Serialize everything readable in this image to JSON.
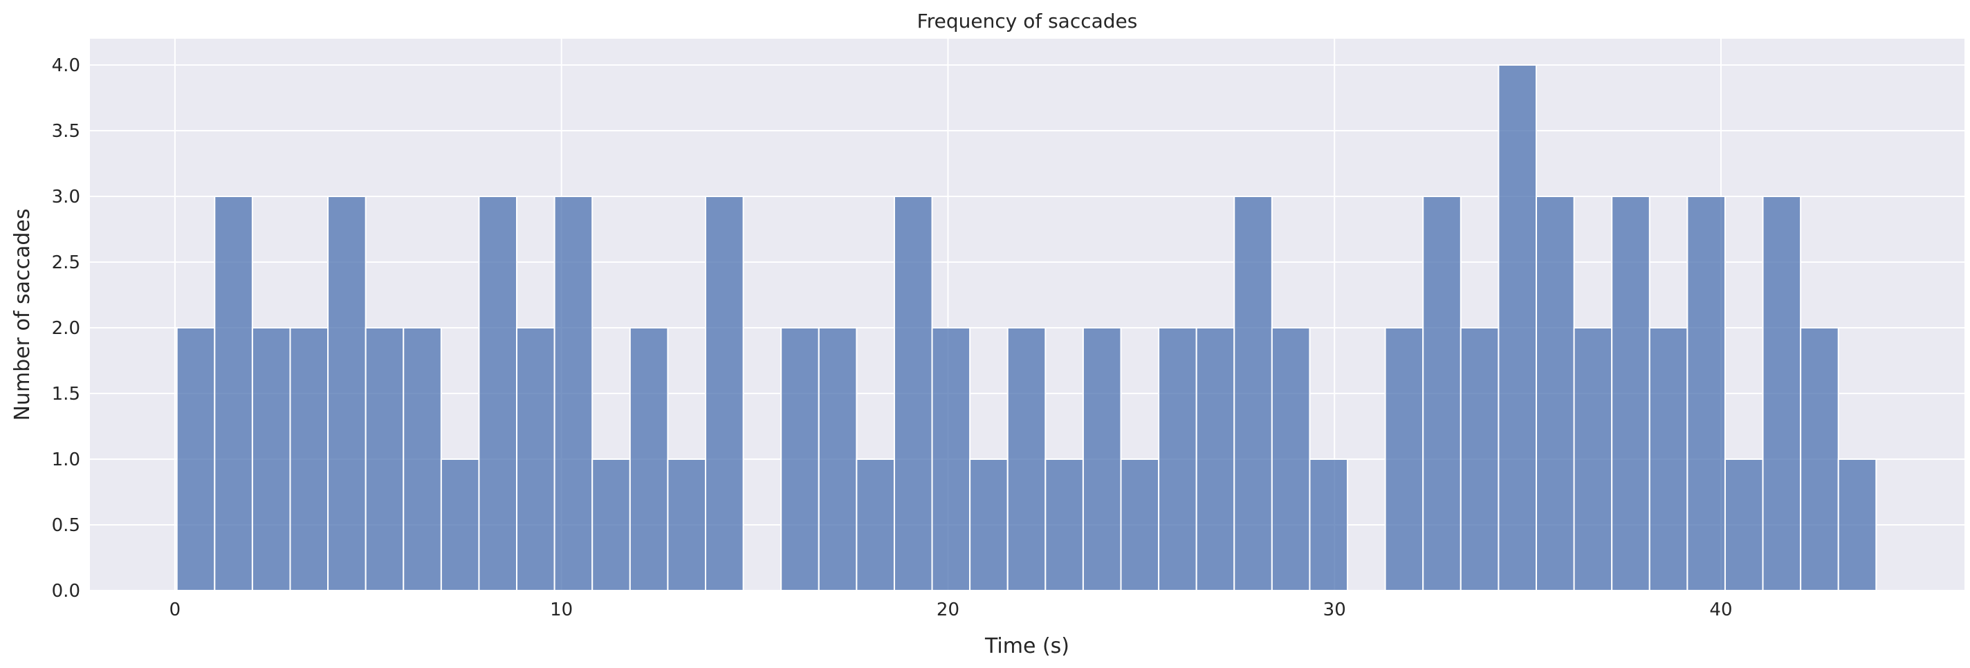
{
  "chart_data": {
    "type": "bar",
    "title": "Frequency of saccades",
    "xlabel": "Time (s)",
    "ylabel": "Number of saccades",
    "xlim": [
      -2.2,
      46.3
    ],
    "ylim": [
      0,
      4.2
    ],
    "xticks": [
      0,
      10,
      20,
      30,
      40
    ],
    "yticks": [
      0.0,
      0.5,
      1.0,
      1.5,
      2.0,
      2.5,
      3.0,
      3.5,
      4.0
    ],
    "bin_start": 0.05,
    "bin_width": 0.977,
    "values": [
      2,
      3,
      2,
      2,
      3,
      2,
      2,
      1,
      3,
      2,
      3,
      1,
      2,
      1,
      3,
      0,
      2,
      2,
      1,
      3,
      2,
      1,
      2,
      1,
      2,
      1,
      2,
      2,
      3,
      2,
      1,
      0,
      2,
      3,
      2,
      4,
      3,
      2,
      3,
      2,
      3,
      1,
      3,
      2,
      1
    ],
    "grid": true,
    "colors": {
      "bar": "#4c72b0",
      "background": "#eaeaf2",
      "grid": "#ffffff"
    }
  }
}
